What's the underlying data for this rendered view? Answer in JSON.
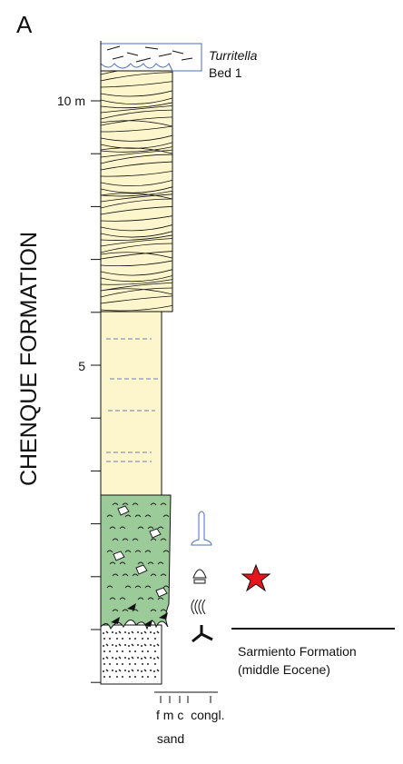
{
  "panel_label": "A",
  "column": {
    "formation": "CHENQUE FORMATION",
    "scale_labels": [
      "10 m",
      "5"
    ],
    "top_bed": {
      "name": "Turritella",
      "label": "Bed 1"
    },
    "base": {
      "name": "Sarmiento Formation",
      "age": "(middle Eocene)"
    },
    "grain_size": {
      "classes": "f m c  congl.",
      "group": "sand"
    }
  }
}
